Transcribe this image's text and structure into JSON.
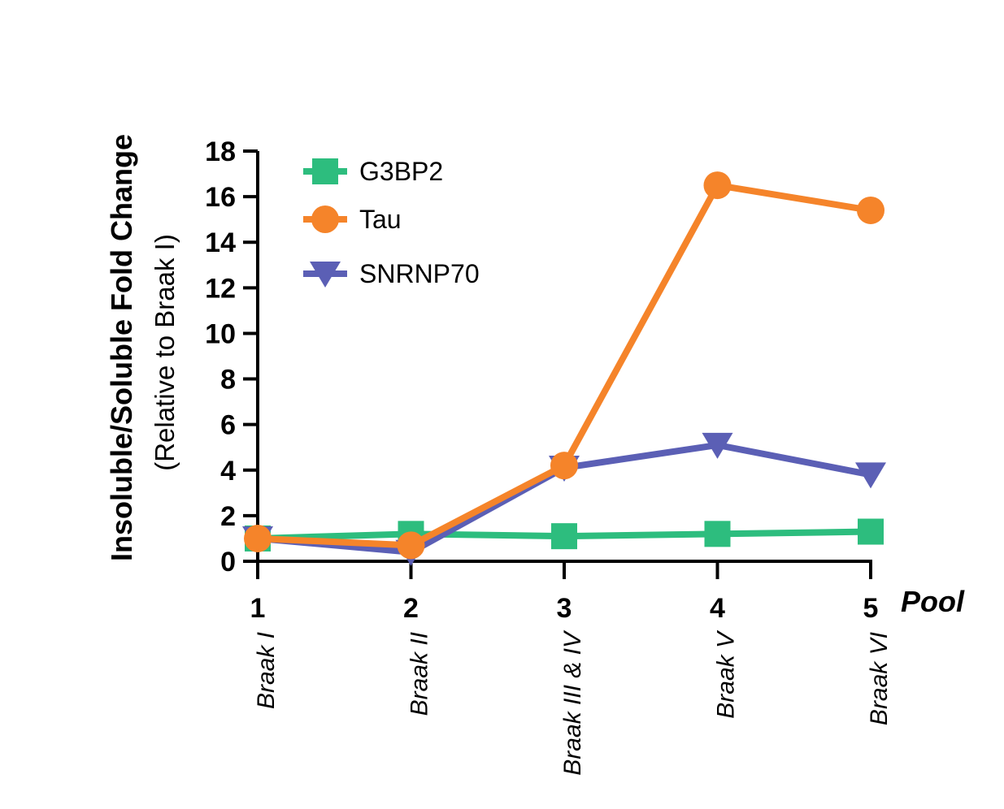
{
  "chart_data": {
    "type": "line",
    "ylabel": "Insoluble/Soluble Fold Change",
    "ylabel_sub": "(Relative to Braak I)",
    "xlabel": "Pool",
    "ylim": [
      0,
      18
    ],
    "yticks": [
      "0",
      "2",
      "4",
      "6",
      "8",
      "10",
      "12",
      "14",
      "16",
      "18"
    ],
    "categories": [
      "1",
      "2",
      "3",
      "4",
      "5"
    ],
    "stage_labels": [
      "Braak I",
      "Braak II",
      "Braak III & IV",
      "Braak V",
      "Braak VI"
    ],
    "legend_position": "top-left",
    "series": [
      {
        "name": "G3BP2",
        "color": "#2dbd7e",
        "marker": "square",
        "values": [
          1.0,
          1.2,
          1.1,
          1.2,
          1.3
        ]
      },
      {
        "name": "SNRNP70",
        "color": "#5b5fb5",
        "marker": "triangle-down",
        "values": [
          1.0,
          0.4,
          4.1,
          5.1,
          3.8
        ]
      },
      {
        "name": "Tau",
        "color": "#f5842a",
        "marker": "circle",
        "values": [
          1.0,
          0.7,
          4.2,
          16.5,
          15.4
        ]
      }
    ],
    "legend_order": [
      "G3BP2",
      "Tau",
      "SNRNP70"
    ]
  }
}
